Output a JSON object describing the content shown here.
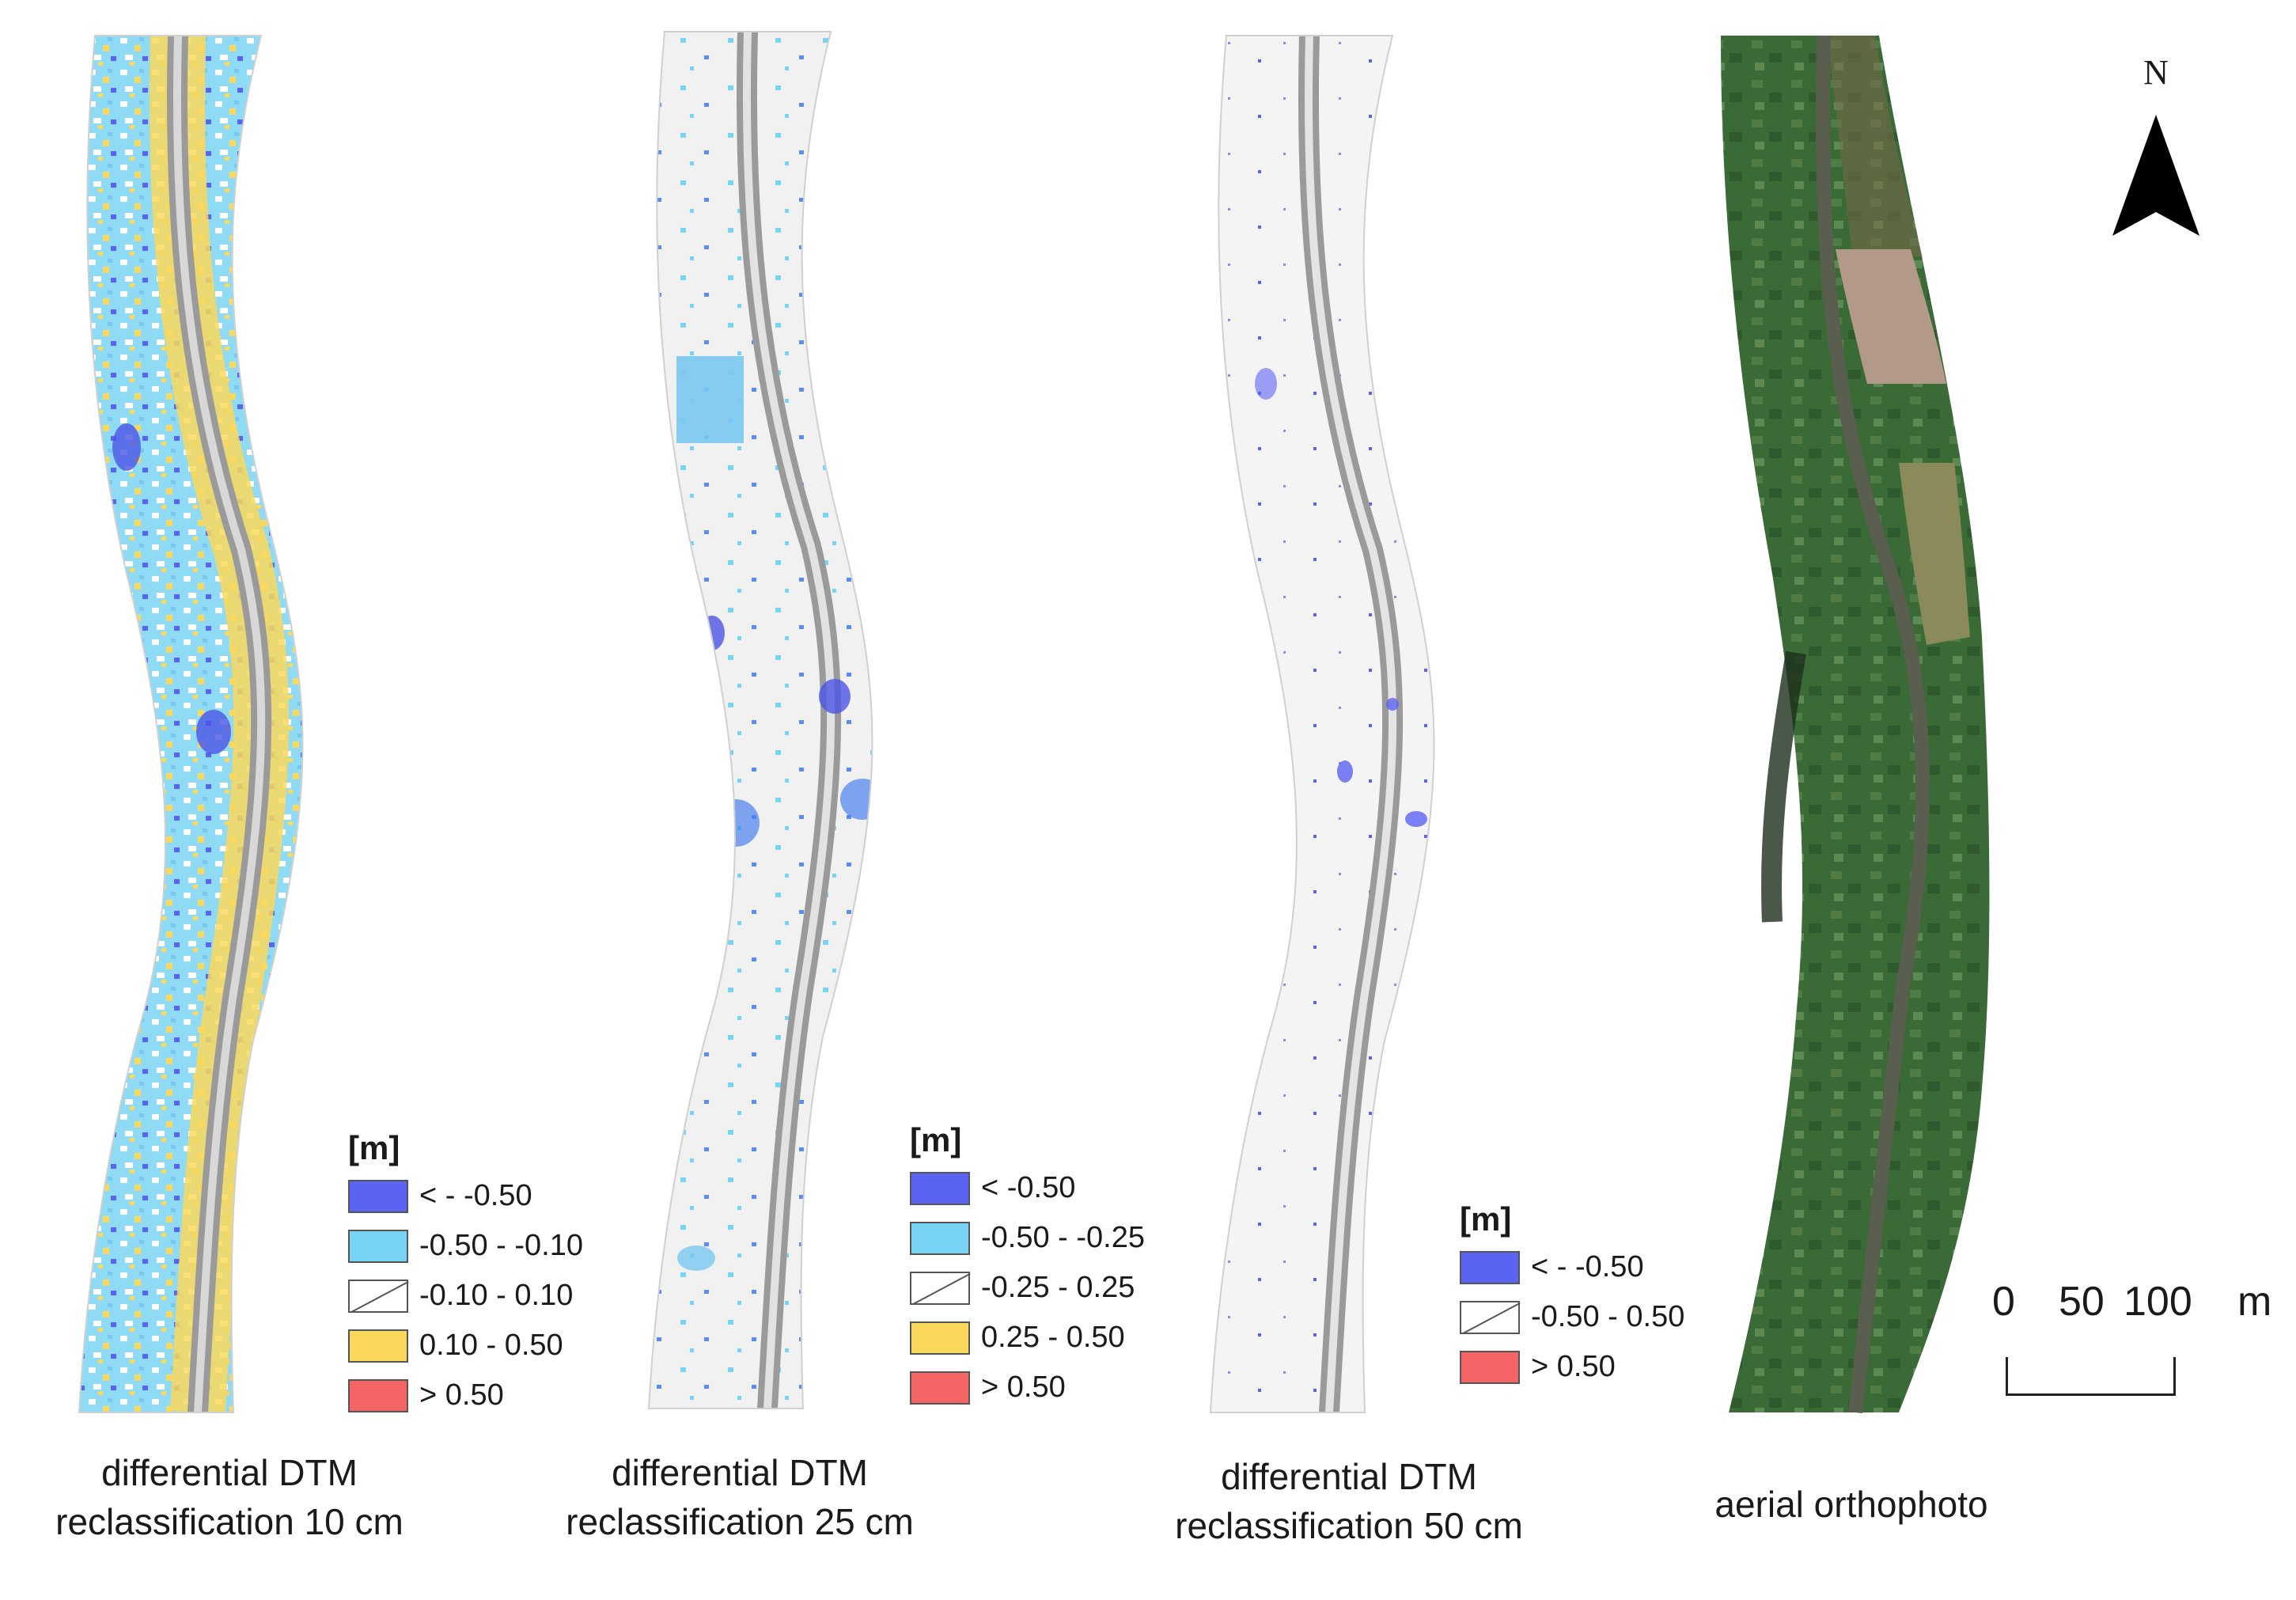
{
  "panels": [
    {
      "caption_lines": [
        "differential DTM",
        "reclassification 10 cm"
      ],
      "legend": {
        "title": "[m]",
        "items": [
          {
            "label": "< - -0.50",
            "color": "#5b63f2",
            "hatched": false
          },
          {
            "label": "-0.50 - -0.10",
            "color": "#79d3f4",
            "hatched": false
          },
          {
            "label": "-0.10 - 0.10",
            "color": "#ffffff",
            "hatched": true
          },
          {
            "label": "0.10 - 0.50",
            "color": "#fad85c",
            "hatched": false
          },
          {
            "label": "> 0.50",
            "color": "#f56464",
            "hatched": false
          }
        ]
      }
    },
    {
      "caption_lines": [
        "differential DTM",
        "reclassification 25 cm"
      ],
      "legend": {
        "title": "[m]",
        "items": [
          {
            "label": "< -0.50",
            "color": "#5b63f2",
            "hatched": false
          },
          {
            "label": "-0.50 - -0.25",
            "color": "#79d3f4",
            "hatched": false
          },
          {
            "label": "-0.25 - 0.25",
            "color": "#ffffff",
            "hatched": true
          },
          {
            "label": "0.25 - 0.50",
            "color": "#fad85c",
            "hatched": false
          },
          {
            "label": "> 0.50",
            "color": "#f56464",
            "hatched": false
          }
        ]
      }
    },
    {
      "caption_lines": [
        "differential DTM",
        "reclassification 50 cm"
      ],
      "legend": {
        "title": "[m]",
        "items": [
          {
            "label": "< - -0.50",
            "color": "#5b63f2",
            "hatched": false
          },
          {
            "label": "-0.50 - 0.50",
            "color": "#ffffff",
            "hatched": true
          },
          {
            "label": "> 0.50",
            "color": "#f56464",
            "hatched": false
          }
        ]
      }
    },
    {
      "caption_lines": [
        "aerial orthophoto"
      ]
    }
  ],
  "north_arrow": {
    "label": "N",
    "icon": "north-arrow-icon"
  },
  "scale_bar": {
    "ticks": [
      "0",
      "50",
      "100",
      "m"
    ]
  }
}
